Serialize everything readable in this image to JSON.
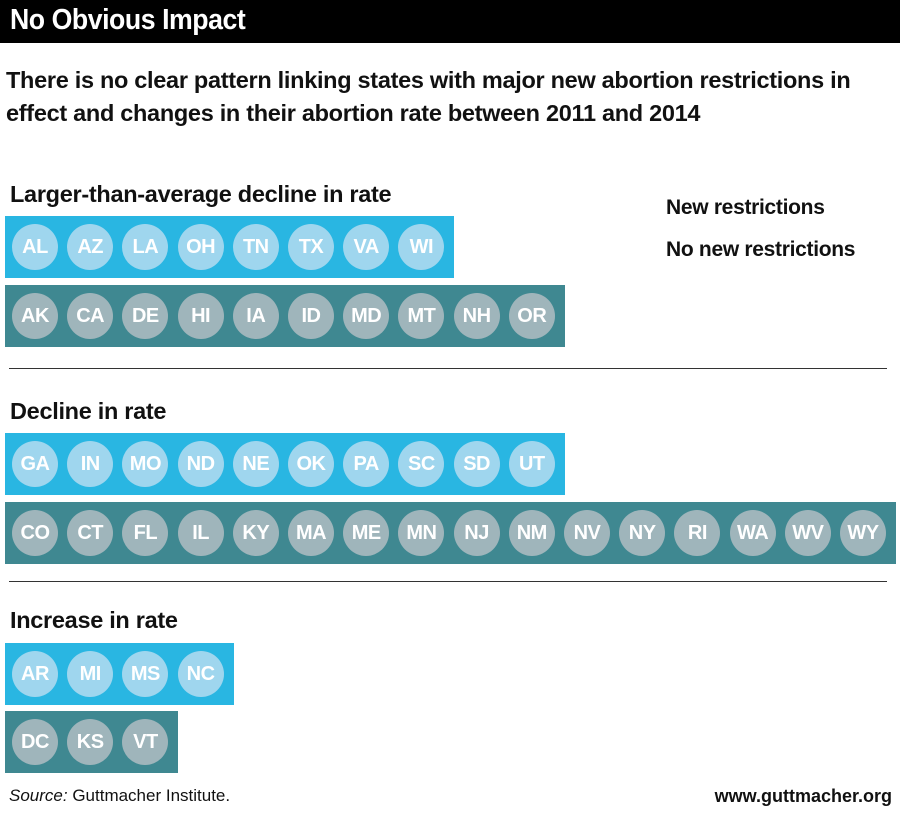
{
  "title": "No Obvious Impact",
  "subtitle": "There is no clear pattern linking states with major new abortion restrictions in effect and changes in their abortion rate between 2011 and 2014",
  "legend": [
    {
      "label": "New restrictions",
      "color": "#29b6e2"
    },
    {
      "label": "No new restrictions",
      "color": "#3f8891"
    }
  ],
  "chart_data": {
    "type": "table",
    "groups": [
      {
        "label": "Larger-than-average decline in rate",
        "new_restrictions": [
          "AL",
          "AZ",
          "LA",
          "OH",
          "TN",
          "TX",
          "VA",
          "WI"
        ],
        "no_new_restrictions": [
          "AK",
          "CA",
          "DE",
          "HI",
          "IA",
          "ID",
          "MD",
          "MT",
          "NH",
          "OR"
        ]
      },
      {
        "label": "Decline in rate",
        "new_restrictions": [
          "GA",
          "IN",
          "MO",
          "ND",
          "NE",
          "OK",
          "PA",
          "SC",
          "SD",
          "UT"
        ],
        "no_new_restrictions": [
          "CO",
          "CT",
          "FL",
          "IL",
          "KY",
          "MA",
          "ME",
          "MN",
          "NJ",
          "NM",
          "NV",
          "NY",
          "RI",
          "WA",
          "WV",
          "WY"
        ]
      },
      {
        "label": "Increase in rate",
        "new_restrictions": [
          "AR",
          "MI",
          "MS",
          "NC"
        ],
        "no_new_restrictions": [
          "DC",
          "KS",
          "VT"
        ]
      }
    ]
  },
  "source_prefix": "Source:",
  "source_text": " Guttmacher Institute.",
  "url": "www.guttmacher.org"
}
